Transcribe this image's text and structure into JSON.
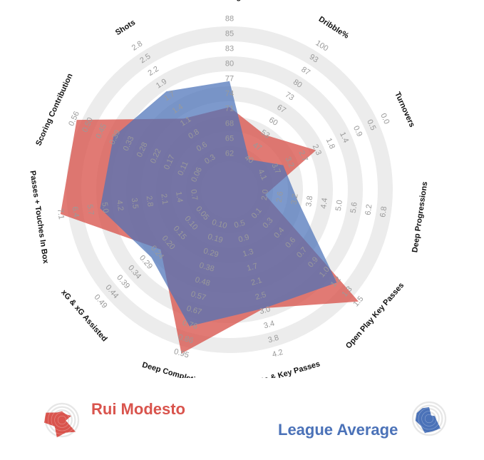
{
  "chart_data": {
    "type": "radar",
    "axes": [
      {
        "label": "Passing%",
        "ticks": [
          "62",
          "65",
          "68",
          "71",
          "74",
          "77",
          "80",
          "83",
          "85",
          "88"
        ]
      },
      {
        "label": "Dribble%",
        "ticks": [
          "40",
          "47",
          "53",
          "60",
          "67",
          "73",
          "80",
          "87",
          "93",
          "100"
        ]
      },
      {
        "label": "Turnovers",
        "ticks": [
          "4.1",
          "3.7",
          "3.2",
          "2.7",
          "2.3",
          "1.8",
          "1.4",
          "0.9",
          "0.5",
          "0.0"
        ]
      },
      {
        "label": "Deep Progressions",
        "ticks": [
          "2.0",
          "2.6",
          "3.2",
          "3.8",
          "4.4",
          "5.0",
          "5.6",
          "6.2",
          "6.8"
        ]
      },
      {
        "label": "Open Play Key Passes",
        "ticks": [
          "0.1",
          "0.3",
          "0.4",
          "0.6",
          "0.7",
          "0.9",
          "1.0",
          "1.2",
          "1.3",
          "1.5"
        ]
      },
      {
        "label": "Shots & Key Passes",
        "ticks": [
          "0.5",
          "0.9",
          "1.3",
          "1.7",
          "2.1",
          "2.5",
          "3.0",
          "3.4",
          "3.8",
          "4.2"
        ]
      },
      {
        "label": "Deep Completions",
        "ticks": [
          "0.10",
          "0.19",
          "0.29",
          "0.38",
          "0.48",
          "0.57",
          "0.67",
          "0.76",
          "0.86",
          "0.95"
        ]
      },
      {
        "label": "xG & xG Assisted",
        "ticks": [
          "0.05",
          "0.10",
          "0.15",
          "0.20",
          "0.24",
          "0.29",
          "0.34",
          "0.39",
          "0.44",
          "0.49"
        ]
      },
      {
        "label": "Passes + Touches In Box",
        "ticks": [
          "0.7",
          "1.4",
          "2.1",
          "2.8",
          "3.5",
          "4.2",
          "5.0",
          "5.7",
          "6.4",
          "7.1"
        ]
      },
      {
        "label": "Scoring Contribution",
        "ticks": [
          "0.06",
          "0.11",
          "0.17",
          "0.22",
          "0.28",
          "0.33",
          "0.39",
          "0.45",
          "0.50",
          "0.56"
        ]
      },
      {
        "label": "Shots",
        "ticks": [
          "0.3",
          "0.6",
          "0.8",
          "1.1",
          "1.4",
          "1.7",
          "1.9",
          "2.2",
          "2.5",
          "2.8"
        ]
      }
    ],
    "series": [
      {
        "name": "Rui Modesto",
        "color": "#d9544d",
        "values": [
          71,
          53,
          2.3,
          2.0,
          1.5,
          2.9,
          0.95,
          0.23,
          7.1,
          0.55,
          1.2
        ]
      },
      {
        "name": "League Average",
        "color": "#4b72b8",
        "values": [
          76,
          40,
          3.4,
          3.3,
          1.2,
          2.9,
          0.77,
          0.27,
          5.2,
          0.4,
          1.8
        ]
      }
    ],
    "rings": 10,
    "grid": true,
    "legend": "bottom"
  },
  "legend": {
    "player": "Rui Modesto",
    "average": "League Average"
  },
  "colors": {
    "player": "#d9544d",
    "average": "#4b72b8",
    "grid": "#ececec"
  }
}
